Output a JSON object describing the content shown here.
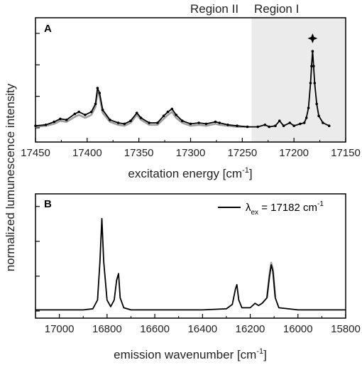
{
  "chart_data": [
    {
      "type": "line",
      "panel": "A",
      "xlabel": "excitation energy [cm",
      "xlabel_sup": "-1",
      "xlabel_close": "]",
      "xlim": [
        17450,
        17150
      ],
      "xticks": [
        17450,
        17400,
        17350,
        17300,
        17250,
        17200,
        17150
      ],
      "ylim": [
        0,
        1.0
      ],
      "regions": [
        {
          "label": "Region II",
          "shaded": false,
          "x_range": [
            17450,
            17241
          ]
        },
        {
          "label": "Region I",
          "shaded": true,
          "shade_color": "#ebebeb",
          "x_range": [
            17241,
            17150
          ]
        }
      ],
      "peak_marker": {
        "x": 17182,
        "y": 0.9,
        "symbol": "star"
      },
      "series": [
        {
          "color": "#000000",
          "markers": true,
          "points": [
            [
              17450,
              0.02
            ],
            [
              17440,
              0.03
            ],
            [
              17432,
              0.06
            ],
            [
              17426,
              0.09
            ],
            [
              17420,
              0.08
            ],
            [
              17412,
              0.14
            ],
            [
              17408,
              0.16
            ],
            [
              17402,
              0.13
            ],
            [
              17396,
              0.16
            ],
            [
              17392,
              0.24
            ],
            [
              17390,
              0.4
            ],
            [
              17388,
              0.35
            ],
            [
              17385,
              0.18
            ],
            [
              17378,
              0.08
            ],
            [
              17370,
              0.05
            ],
            [
              17364,
              0.04
            ],
            [
              17358,
              0.07
            ],
            [
              17352,
              0.15
            ],
            [
              17348,
              0.1
            ],
            [
              17340,
              0.05
            ],
            [
              17332,
              0.05
            ],
            [
              17326,
              0.12
            ],
            [
              17322,
              0.16
            ],
            [
              17318,
              0.19
            ],
            [
              17314,
              0.13
            ],
            [
              17308,
              0.07
            ],
            [
              17300,
              0.04
            ],
            [
              17292,
              0.05
            ],
            [
              17285,
              0.04
            ],
            [
              17276,
              0.06
            ],
            [
              17272,
              0.05
            ],
            [
              17264,
              0.03
            ],
            [
              17255,
              0.02
            ],
            [
              17245,
              0.01
            ],
            [
              17235,
              0.01
            ],
            [
              17228,
              0.03
            ],
            [
              17224,
              0.01
            ],
            [
              17218,
              0.02
            ],
            [
              17214,
              0.07
            ],
            [
              17210,
              0.02
            ],
            [
              17204,
              0.05
            ],
            [
              17200,
              0.02
            ],
            [
              17194,
              0.04
            ],
            [
              17190,
              0.05
            ],
            [
              17188,
              0.1
            ],
            [
              17186,
              0.2
            ],
            [
              17184,
              0.45
            ],
            [
              17183,
              0.62
            ],
            [
              17182,
              0.77
            ],
            [
              17181,
              0.62
            ],
            [
              17180,
              0.45
            ],
            [
              17178,
              0.24
            ],
            [
              17176,
              0.12
            ],
            [
              17172,
              0.05
            ],
            [
              17166,
              0.02
            ]
          ]
        },
        {
          "color": "#a0a0a0",
          "markers": false,
          "points": [
            [
              17450,
              0.01
            ],
            [
              17440,
              0.02
            ],
            [
              17432,
              0.04
            ],
            [
              17426,
              0.07
            ],
            [
              17420,
              0.06
            ],
            [
              17412,
              0.11
            ],
            [
              17408,
              0.13
            ],
            [
              17402,
              0.1
            ],
            [
              17396,
              0.13
            ],
            [
              17392,
              0.21
            ],
            [
              17390,
              0.36
            ],
            [
              17388,
              0.31
            ],
            [
              17385,
              0.15
            ],
            [
              17378,
              0.06
            ],
            [
              17370,
              0.03
            ],
            [
              17364,
              0.02
            ],
            [
              17358,
              0.05
            ],
            [
              17352,
              0.13
            ],
            [
              17348,
              0.08
            ],
            [
              17340,
              0.03
            ],
            [
              17332,
              0.03
            ],
            [
              17326,
              0.09
            ],
            [
              17322,
              0.13
            ],
            [
              17318,
              0.16
            ],
            [
              17314,
              0.1
            ],
            [
              17308,
              0.05
            ],
            [
              17300,
              0.02
            ],
            [
              17292,
              0.03
            ],
            [
              17285,
              0.02
            ],
            [
              17276,
              0.04
            ],
            [
              17272,
              0.03
            ],
            [
              17264,
              0.02
            ],
            [
              17255,
              0.01
            ],
            [
              17245,
              0.01
            ]
          ]
        }
      ]
    },
    {
      "type": "line",
      "panel": "B",
      "xlabel": "emission wavenumber [cm",
      "xlabel_sup": "-1",
      "xlabel_close": "]",
      "xlim": [
        17100,
        15800
      ],
      "xticks": [
        17000,
        16800,
        16600,
        16400,
        16200,
        16000,
        15800
      ],
      "ylim": [
        0,
        1.0
      ],
      "legend": {
        "placement": "top-right",
        "symbol": "λ",
        "sub": "ex",
        "text": " = 17182 cm",
        "sup": "-1"
      },
      "series": [
        {
          "color": "#000000",
          "markers": false,
          "points": [
            [
              17100,
              0.01
            ],
            [
              17000,
              0.01
            ],
            [
              16900,
              0.01
            ],
            [
              16860,
              0.02
            ],
            [
              16840,
              0.1
            ],
            [
              16830,
              0.45
            ],
            [
              16822,
              0.84
            ],
            [
              16814,
              0.45
            ],
            [
              16800,
              0.1
            ],
            [
              16785,
              0.04
            ],
            [
              16770,
              0.1
            ],
            [
              16760,
              0.28
            ],
            [
              16752,
              0.34
            ],
            [
              16745,
              0.12
            ],
            [
              16730,
              0.03
            ],
            [
              16700,
              0.01
            ],
            [
              16600,
              0.01
            ],
            [
              16500,
              0.01
            ],
            [
              16400,
              0.01
            ],
            [
              16300,
              0.02
            ],
            [
              16275,
              0.06
            ],
            [
              16262,
              0.2
            ],
            [
              16256,
              0.24
            ],
            [
              16248,
              0.1
            ],
            [
              16235,
              0.03
            ],
            [
              16200,
              0.03
            ],
            [
              16180,
              0.07
            ],
            [
              16165,
              0.05
            ],
            [
              16150,
              0.07
            ],
            [
              16130,
              0.12
            ],
            [
              16120,
              0.3
            ],
            [
              16112,
              0.42
            ],
            [
              16105,
              0.36
            ],
            [
              16095,
              0.12
            ],
            [
              16080,
              0.03
            ],
            [
              16000,
              0.01
            ],
            [
              15900,
              0.01
            ],
            [
              15800,
              0.01
            ]
          ]
        },
        {
          "color": "#a0a0a0",
          "markers": false,
          "points": [
            [
              16130,
              0.12
            ],
            [
              16120,
              0.32
            ],
            [
              16112,
              0.44
            ],
            [
              16105,
              0.38
            ],
            [
              16095,
              0.13
            ]
          ]
        }
      ]
    }
  ],
  "shared": {
    "ylabel": "normalized lumunescence intensity"
  }
}
